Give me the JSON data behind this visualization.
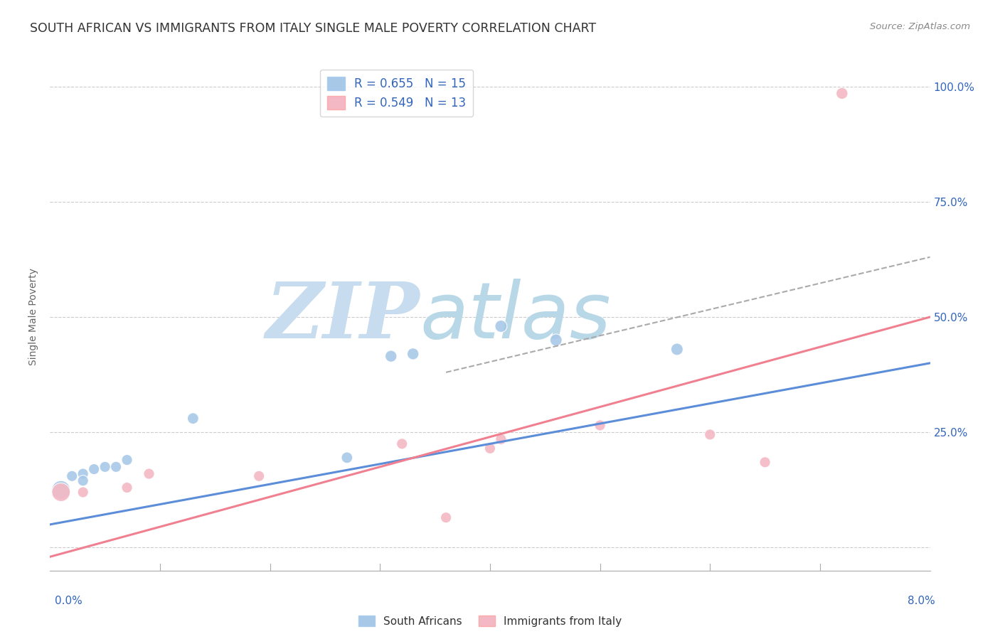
{
  "title": "SOUTH AFRICAN VS IMMIGRANTS FROM ITALY SINGLE MALE POVERTY CORRELATION CHART",
  "source": "Source: ZipAtlas.com",
  "ylabel": "Single Male Poverty",
  "blue_R": "0.655",
  "blue_N": "15",
  "pink_R": "0.549",
  "pink_N": "13",
  "blue_color": "#5B8DD9",
  "pink_color": "#F08090",
  "blue_label": "South Africans",
  "pink_label": "Immigrants from Italy",
  "blue_scatter_color": "#A8C8E8",
  "pink_scatter_color": "#F4B8C4",
  "blue_points_x": [
    0.001,
    0.002,
    0.003,
    0.004,
    0.005,
    0.003,
    0.006,
    0.007,
    0.013,
    0.027,
    0.031,
    0.033,
    0.041,
    0.046,
    0.057
  ],
  "blue_points_y": [
    0.125,
    0.155,
    0.16,
    0.17,
    0.175,
    0.145,
    0.175,
    0.19,
    0.28,
    0.195,
    0.415,
    0.42,
    0.48,
    0.45,
    0.43
  ],
  "pink_points_x": [
    0.001,
    0.003,
    0.007,
    0.009,
    0.019,
    0.032,
    0.036,
    0.04,
    0.041,
    0.05,
    0.06,
    0.065,
    0.072
  ],
  "pink_points_y": [
    0.12,
    0.12,
    0.13,
    0.16,
    0.155,
    0.225,
    0.065,
    0.215,
    0.235,
    0.265,
    0.245,
    0.185,
    0.985
  ],
  "blue_line_x": [
    0.0,
    0.08
  ],
  "blue_line_y": [
    0.05,
    0.4
  ],
  "pink_line_x": [
    0.0,
    0.08
  ],
  "pink_line_y": [
    -0.02,
    0.5
  ],
  "dashed_line_x": [
    0.036,
    0.08
  ],
  "dashed_line_y": [
    0.38,
    0.63
  ],
  "blue_point_sizes": [
    350,
    120,
    120,
    120,
    120,
    120,
    120,
    120,
    130,
    130,
    140,
    140,
    150,
    150,
    150
  ],
  "pink_point_sizes": [
    350,
    120,
    120,
    120,
    120,
    120,
    120,
    120,
    120,
    120,
    120,
    120,
    140
  ],
  "xlim": [
    0.0,
    0.08
  ],
  "ylim": [
    -0.05,
    1.05
  ],
  "ytick_positions": [
    0.0,
    0.25,
    0.5,
    0.75,
    1.0
  ],
  "ytick_labels": [
    "",
    "25.0%",
    "50.0%",
    "75.0%",
    "100.0%"
  ],
  "xtick_label_left": "0.0%",
  "xtick_label_right": "8.0%",
  "watermark_text1": "ZIP",
  "watermark_text2": "atlas",
  "watermark_color1": "#C8DCF0",
  "watermark_color2": "#B8D8E8",
  "bg_color": "#FFFFFF"
}
